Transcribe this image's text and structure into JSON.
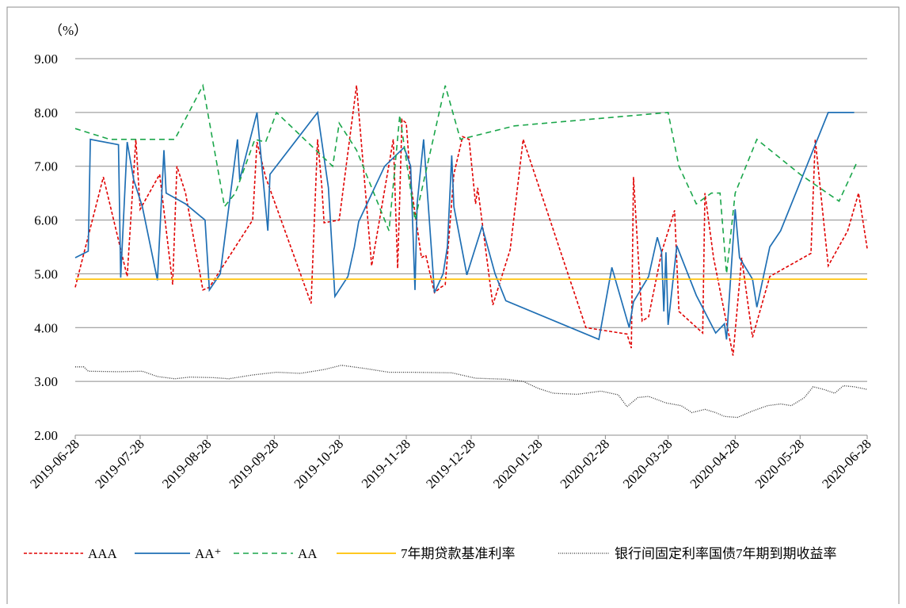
{
  "chart_data": {
    "type": "line",
    "y_unit_label": "（%）",
    "xlim": [
      "2019-06-28",
      "2020-06-28"
    ],
    "xticks": [
      "2019-06-28",
      "2019-07-28",
      "2019-08-28",
      "2019-09-28",
      "2019-10-28",
      "2019-11-28",
      "2019-12-28",
      "2020-01-28",
      "2020-02-28",
      "2020-03-28",
      "2020-04-28",
      "2020-05-28",
      "2020-06-28"
    ],
    "ylim": [
      2,
      9
    ],
    "yticks": [
      {
        "value": 2,
        "label": "2.00"
      },
      {
        "value": 3,
        "label": "3.00"
      },
      {
        "value": 4,
        "label": "4.00"
      },
      {
        "value": 5,
        "label": "5.00"
      },
      {
        "value": 6,
        "label": "6.00"
      },
      {
        "value": 7,
        "label": "7.00"
      },
      {
        "value": 8,
        "label": "8.00"
      },
      {
        "value": 9,
        "label": "9.00"
      }
    ],
    "grid": true,
    "legend": "bottom",
    "series": [
      {
        "name": "AAA",
        "color": "#e00000",
        "style": "dashed",
        "x": [
          "2019-06-28",
          "2019-07-11",
          "2019-07-22",
          "2019-07-26",
          "2019-07-28",
          "2019-08-06",
          "2019-08-12",
          "2019-08-14",
          "2019-08-18",
          "2019-08-26",
          "2019-08-29",
          "2019-09-18",
          "2019-09-20",
          "2019-09-24",
          "2019-10-15",
          "2019-10-18",
          "2019-10-20",
          "2019-10-21",
          "2019-10-28",
          "2019-11-05",
          "2019-11-12",
          "2019-11-22",
          "2019-11-24",
          "2019-11-26",
          "2019-11-28",
          "2019-11-30",
          "2019-12-05",
          "2019-12-07",
          "2019-12-11",
          "2019-12-14",
          "2019-12-16",
          "2019-12-20",
          "2019-12-24",
          "2019-12-27",
          "2019-12-30",
          "2019-12-31",
          "2020-01-07",
          "2020-01-15",
          "2020-01-21",
          "2020-02-19",
          "2020-03-09",
          "2020-03-11",
          "2020-03-12",
          "2020-03-16",
          "2020-03-19",
          "2020-03-25",
          "2020-03-31",
          "2020-04-02",
          "2020-04-13",
          "2020-04-14",
          "2020-04-18",
          "2020-04-27",
          "2020-05-01",
          "2020-05-06",
          "2020-05-14",
          "2020-06-02",
          "2020-06-04",
          "2020-06-10",
          "2020-06-19",
          "2020-06-24",
          "2020-06-28"
        ],
        "values": [
          4.75,
          6.8,
          4.95,
          7.5,
          6.2,
          6.85,
          4.8,
          7.0,
          6.5,
          4.7,
          4.75,
          6.0,
          7.45,
          6.8,
          4.45,
          7.5,
          6.6,
          5.95,
          6.0,
          8.5,
          5.15,
          7.5,
          5.1,
          7.87,
          7.8,
          6.7,
          5.3,
          5.35,
          4.65,
          4.75,
          4.8,
          6.85,
          7.55,
          7.5,
          6.3,
          6.6,
          4.42,
          5.45,
          7.5,
          4.0,
          3.88,
          3.62,
          6.8,
          4.12,
          4.2,
          5.4,
          6.18,
          4.3,
          3.9,
          6.5,
          5.3,
          3.48,
          5.3,
          3.82,
          4.95,
          5.38,
          7.5,
          5.15,
          5.8,
          6.5,
          5.47
        ]
      },
      {
        "name": "AA⁺",
        "color": "#1f6fb4",
        "style": "solid",
        "x": [
          "2019-06-28",
          "2019-07-04",
          "2019-07-05",
          "2019-07-18",
          "2019-07-19",
          "2019-07-22",
          "2019-07-25",
          "2019-07-29",
          "2019-08-05",
          "2019-08-08",
          "2019-08-09",
          "2019-08-18",
          "2019-08-27",
          "2019-08-29",
          "2019-09-03",
          "2019-09-11",
          "2019-09-12",
          "2019-09-20",
          "2019-09-25",
          "2019-09-26",
          "2019-10-18",
          "2019-10-23",
          "2019-10-26",
          "2019-11-01",
          "2019-11-04",
          "2019-11-06",
          "2019-11-18",
          "2019-11-27",
          "2019-11-30",
          "2019-12-02",
          "2019-12-03",
          "2019-12-06",
          "2019-12-11",
          "2019-12-15",
          "2019-12-17",
          "2019-12-19",
          "2019-12-20",
          "2019-12-26",
          "2020-01-02",
          "2020-01-08",
          "2020-01-13",
          "2020-02-25",
          "2020-03-02",
          "2020-03-10",
          "2020-03-12",
          "2020-03-19",
          "2020-03-23",
          "2020-03-25",
          "2020-03-26",
          "2020-03-27",
          "2020-03-28",
          "2020-04-01",
          "2020-04-10",
          "2020-04-19",
          "2020-04-23",
          "2020-04-24",
          "2020-04-28",
          "2020-04-30",
          "2020-05-06",
          "2020-05-08",
          "2020-05-14",
          "2020-05-19",
          "2020-06-10",
          "2020-06-22"
        ],
        "values": [
          5.3,
          5.42,
          7.5,
          7.4,
          4.93,
          7.45,
          6.75,
          6.25,
          4.88,
          7.3,
          6.5,
          6.3,
          6.0,
          4.7,
          5.0,
          7.5,
          6.75,
          8.0,
          5.8,
          6.85,
          8.0,
          6.6,
          4.58,
          4.95,
          5.5,
          5.97,
          7.0,
          7.35,
          7.0,
          4.7,
          6.3,
          7.5,
          4.65,
          5.0,
          5.5,
          7.2,
          6.25,
          4.98,
          5.88,
          5.0,
          4.5,
          3.78,
          5.12,
          4.0,
          4.48,
          4.95,
          5.68,
          5.4,
          4.3,
          5.4,
          4.05,
          5.52,
          4.6,
          3.9,
          4.07,
          3.78,
          6.2,
          5.3,
          4.9,
          4.38,
          5.5,
          5.8,
          8.0,
          8.0
        ]
      },
      {
        "name": "AA",
        "color": "#1aa64a",
        "style": "longdash",
        "x": [
          "2019-06-28",
          "2019-07-14",
          "2019-08-13",
          "2019-08-26",
          "2019-09-05",
          "2019-09-10",
          "2019-09-19",
          "2019-09-24",
          "2019-09-29",
          "2019-10-25",
          "2019-10-28",
          "2019-11-05",
          "2019-11-20",
          "2019-11-25",
          "2019-12-02",
          "2019-12-16",
          "2019-12-23",
          "2020-01-17",
          "2020-03-28",
          "2020-04-02",
          "2020-04-10",
          "2020-04-17",
          "2020-04-21",
          "2020-04-24",
          "2020-04-28",
          "2020-05-08",
          "2020-05-28",
          "2020-06-15",
          "2020-06-23"
        ],
        "values": [
          7.7,
          7.5,
          7.5,
          8.5,
          6.25,
          6.5,
          7.5,
          7.45,
          8.0,
          7.0,
          7.8,
          7.3,
          5.8,
          7.95,
          6.0,
          8.5,
          7.5,
          7.75,
          8.0,
          7.0,
          6.3,
          6.5,
          6.5,
          5.0,
          6.5,
          7.5,
          6.85,
          6.35,
          7.05
        ]
      },
      {
        "name": "7年期贷款基准利率",
        "color": "#ffc000",
        "style": "solid",
        "x": [
          "2019-06-28",
          "2020-06-28"
        ],
        "values": [
          4.9,
          4.9
        ]
      },
      {
        "name": "银行间固定利率国债7年期到期收益率",
        "color": "#333333",
        "style": "dotted",
        "x": [
          "2019-06-28",
          "2019-07-02",
          "2019-07-04",
          "2019-07-18",
          "2019-07-29",
          "2019-08-05",
          "2019-08-13",
          "2019-08-20",
          "2019-08-31",
          "2019-09-07",
          "2019-09-18",
          "2019-09-29",
          "2019-10-10",
          "2019-10-21",
          "2019-10-29",
          "2019-11-09",
          "2019-11-20",
          "2019-11-30",
          "2019-12-19",
          "2019-12-30",
          "2020-01-13",
          "2020-01-21",
          "2020-01-28",
          "2020-02-04",
          "2020-02-15",
          "2020-02-26",
          "2020-03-05",
          "2020-03-09",
          "2020-03-14",
          "2020-03-19",
          "2020-03-27",
          "2020-04-03",
          "2020-04-08",
          "2020-04-14",
          "2020-04-19",
          "2020-04-23",
          "2020-04-29",
          "2020-05-06",
          "2020-05-13",
          "2020-05-19",
          "2020-05-24",
          "2020-05-30",
          "2020-06-03",
          "2020-06-08",
          "2020-06-13",
          "2020-06-17",
          "2020-06-22",
          "2020-06-28"
        ],
        "values": [
          3.27,
          3.27,
          3.19,
          3.18,
          3.19,
          3.09,
          3.05,
          3.08,
          3.07,
          3.05,
          3.12,
          3.17,
          3.15,
          3.22,
          3.3,
          3.24,
          3.17,
          3.17,
          3.16,
          3.06,
          3.04,
          3.0,
          2.87,
          2.78,
          2.76,
          2.82,
          2.75,
          2.53,
          2.7,
          2.72,
          2.6,
          2.55,
          2.42,
          2.48,
          2.42,
          2.35,
          2.33,
          2.45,
          2.55,
          2.58,
          2.55,
          2.7,
          2.9,
          2.85,
          2.78,
          2.92,
          2.9,
          2.85
        ]
      }
    ]
  }
}
